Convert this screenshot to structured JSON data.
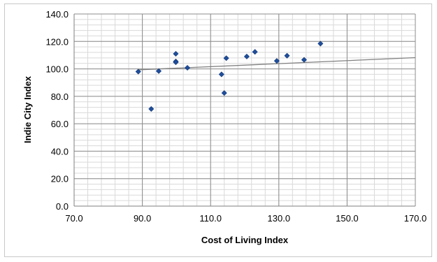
{
  "chart_data": {
    "type": "scatter",
    "title": "",
    "xlabel": "Cost of Living Index",
    "ylabel": "Indie City Index",
    "xlim": [
      70,
      170
    ],
    "ylim": [
      0,
      140
    ],
    "x_ticks": [
      "70.0",
      "90.0",
      "110.0",
      "130.0",
      "150.0",
      "170.0"
    ],
    "y_ticks": [
      "0.0",
      "20.0",
      "40.0",
      "60.0",
      "80.0",
      "100.0",
      "120.0",
      "140.0"
    ],
    "grid": true,
    "legend": "none",
    "series": [
      {
        "marker_color": "#1f4e9c",
        "points": [
          [
            88.8,
            98.0
          ],
          [
            92.6,
            70.8
          ],
          [
            94.8,
            98.4
          ],
          [
            99.8,
            111.0
          ],
          [
            99.8,
            105.4
          ],
          [
            99.8,
            104.8
          ],
          [
            103.2,
            100.8
          ],
          [
            113.2,
            96.0
          ],
          [
            114.0,
            82.4
          ],
          [
            114.6,
            107.8
          ],
          [
            120.6,
            109.0
          ],
          [
            123.0,
            112.4
          ],
          [
            129.4,
            105.8
          ],
          [
            132.4,
            109.6
          ],
          [
            137.4,
            106.6
          ],
          [
            142.2,
            118.4
          ]
        ]
      }
    ],
    "trendline": {
      "type": "linear",
      "x_start": 88.8,
      "x_end": 170,
      "y_start": 99.3,
      "y_end": 108.2,
      "color": "#808080"
    }
  }
}
